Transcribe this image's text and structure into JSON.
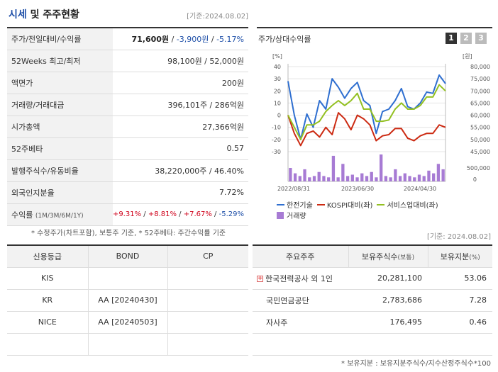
{
  "header": {
    "title_a": "시세",
    "title_b": "및 주주현황",
    "date": "[기준:2024.08.02]"
  },
  "quote_rows": [
    {
      "label": "주가/전일대비/수익률"
    },
    {
      "label": "52Weeks 최고/최저",
      "value": "98,100원 / 52,000원"
    },
    {
      "label": "액면가",
      "value": "200원"
    },
    {
      "label": "거래량/거래대금",
      "value": "396,101주 / 286억원"
    },
    {
      "label": "시가총액",
      "value": "27,366억원"
    },
    {
      "label": "52주베타",
      "value": "0.57"
    },
    {
      "label": "발행주식수/유동비율",
      "value": "38,220,000주 / 46.40%"
    },
    {
      "label": "외국인지분율",
      "value": "7.72%"
    },
    {
      "label": "수익률",
      "label_small": "(1M/3M/6M/1Y)"
    }
  ],
  "price": {
    "price": "71,600원",
    "change": "-3,900원",
    "rate": "-5.17%"
  },
  "returns": {
    "m1": "+9.31%",
    "m3": "+8.81%",
    "m6": "+7.67%",
    "y1": "-5.29%"
  },
  "note1": "* 수정주가(차트포함), 보통주 기준, * 52주베타: 주간수익률 기준",
  "chart": {
    "title": "주가/상대수익률",
    "buttons": [
      "1",
      "2",
      "3"
    ],
    "legend": {
      "s1": "한전기술",
      "s2": "KOSPI대비(좌)",
      "s3": "서비스업대비(좌)",
      "vol": "거래량"
    },
    "colors": {
      "s1": "#2f6fd0",
      "s2": "#cc2a12",
      "s3": "#93c021",
      "vol": "#a77bd4"
    }
  },
  "chart_data": {
    "type": "line",
    "left_unit": "[%]",
    "right_unit": "[원]",
    "x_labels": [
      "2022/08/31",
      "2023/06/30",
      "2024/04/30"
    ],
    "left_ticks": [
      "40",
      "30",
      "20",
      "10",
      "0",
      "-10",
      "-20",
      "-30"
    ],
    "right_ticks": [
      "80,000",
      "75,000",
      "70,000",
      "65,000",
      "60,000",
      "55,000",
      "50,000",
      "45,000"
    ],
    "vol_ticks": [
      "500,000",
      "0"
    ],
    "ylim": [
      -30,
      40
    ],
    "vol_max": 1000000,
    "series": [
      {
        "name": "한전기술",
        "values": [
          28,
          0,
          -20,
          1,
          -10,
          12,
          5,
          30,
          23,
          14,
          22,
          27,
          12,
          8,
          -15,
          3,
          5,
          12,
          22,
          7,
          5,
          10,
          19,
          18,
          33,
          26
        ]
      },
      {
        "name": "KOSPI대비(좌)",
        "values": [
          0,
          -15,
          -25,
          -15,
          -13,
          -18,
          -10,
          -16,
          2,
          -3,
          -12,
          0,
          -3,
          -8,
          -21,
          -17,
          -16,
          -11,
          -11,
          -19,
          -21,
          -17,
          -15,
          -15,
          -8,
          -10
        ]
      },
      {
        "name": "서비스업대비(좌)",
        "values": [
          0,
          -10,
          -20,
          -8,
          -8,
          -5,
          3,
          8,
          12,
          8,
          12,
          18,
          5,
          5,
          -5,
          -5,
          -4,
          5,
          10,
          5,
          5,
          8,
          15,
          15,
          25,
          20
        ]
      }
    ],
    "volume": [
      500000,
      300000,
      200000,
      450000,
      150000,
      200000,
      350000,
      200000,
      150000,
      950000,
      150000,
      650000,
      200000,
      250000,
      150000,
      300000,
      200000,
      350000,
      150000,
      1000000,
      200000,
      150000,
      450000,
      200000,
      300000,
      200000,
      150000,
      250000,
      200000,
      400000,
      300000,
      650000,
      450000
    ]
  },
  "date2": "[기준: 2024.08.02]",
  "credit": {
    "headers": [
      "신용등급",
      "BOND",
      "CP"
    ],
    "rows": [
      {
        "agency": "KIS",
        "bond": "",
        "cp": ""
      },
      {
        "agency": "KR",
        "bond": "AA [20240430]",
        "cp": ""
      },
      {
        "agency": "NICE",
        "bond": "AA [20240503]",
        "cp": ""
      }
    ]
  },
  "holders": {
    "headers": {
      "name": "주요주주",
      "shares": "보유주식수",
      "shares_sub": "(보통)",
      "ratio": "보유지분",
      "ratio_sub": "(%)"
    },
    "rows": [
      {
        "name": "한국전력공사 외 1인",
        "shares": "20,281,100",
        "ratio": "53.06",
        "expand": "+"
      },
      {
        "name": "국민연금공단",
        "shares": "2,783,686",
        "ratio": "7.28"
      },
      {
        "name": "자사주",
        "shares": "176,495",
        "ratio": "0.46"
      }
    ]
  },
  "note2": "* 보유지분 : 보유지분주식수/지수산정주식수*100"
}
